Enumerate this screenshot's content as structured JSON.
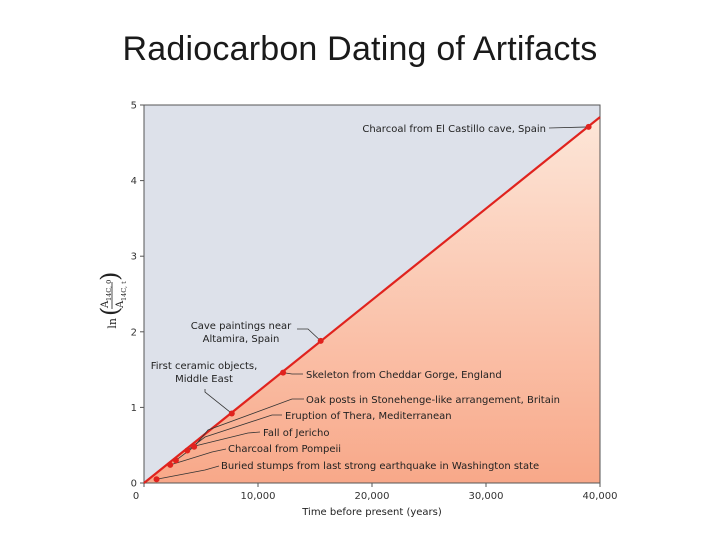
{
  "slide": {
    "title": "Radiocarbon Dating of Artifacts"
  },
  "colors": {
    "line": "#e0231e",
    "point": "#e0231e",
    "upper_region": "#dde1ea",
    "lower_region_light": "#fde6d8",
    "lower_region_dark": "#f8a889",
    "axis": "#555555",
    "leader": "#333333"
  },
  "chart_data": {
    "type": "line",
    "title": "",
    "xlabel": "Time before present (years)",
    "ylabel_prefix": "ln",
    "ylabel_num": "A",
    "ylabel_num_sub": "14C, 0",
    "ylabel_den": "A",
    "ylabel_den_sub": "14C, t",
    "xlim": [
      0,
      40000
    ],
    "ylim": [
      0,
      5
    ],
    "xticks": [
      "0",
      "10,000",
      "20,000",
      "30,000",
      "40,000"
    ],
    "yticks": [
      "0",
      "1",
      "2",
      "3",
      "4",
      "5"
    ],
    "xtick_values": [
      0,
      10000,
      20000,
      30000,
      40000
    ],
    "ytick_values": [
      0,
      1,
      2,
      3,
      4,
      5
    ],
    "line": {
      "x": [
        0,
        40000
      ],
      "y": [
        0,
        4.84
      ]
    },
    "points": [
      {
        "label": "Buried stumps from last strong earthquake in Washington state",
        "x": 1100,
        "y": 0.05
      },
      {
        "label": "Charcoal from Pompeii",
        "x": 2300,
        "y": 0.24
      },
      {
        "label": "Fall of Jericho",
        "x": 2800,
        "y": 0.3
      },
      {
        "label": "Eruption of Thera, Mediterranean",
        "x": 3800,
        "y": 0.43
      },
      {
        "label": "Oak posts in Stonehenge-like arrangement, Britain",
        "x": 4400,
        "y": 0.48
      },
      {
        "label": "First ceramic objects, Middle East",
        "x": 7700,
        "y": 0.92
      },
      {
        "label": "Skeleton from Cheddar Gorge, England",
        "x": 12200,
        "y": 1.46
      },
      {
        "label": "Cave paintings near Altamira, Spain",
        "x": 15500,
        "y": 1.88
      },
      {
        "label": "Charcoal from El Castillo cave, Spain",
        "x": 39000,
        "y": 4.71
      }
    ]
  }
}
